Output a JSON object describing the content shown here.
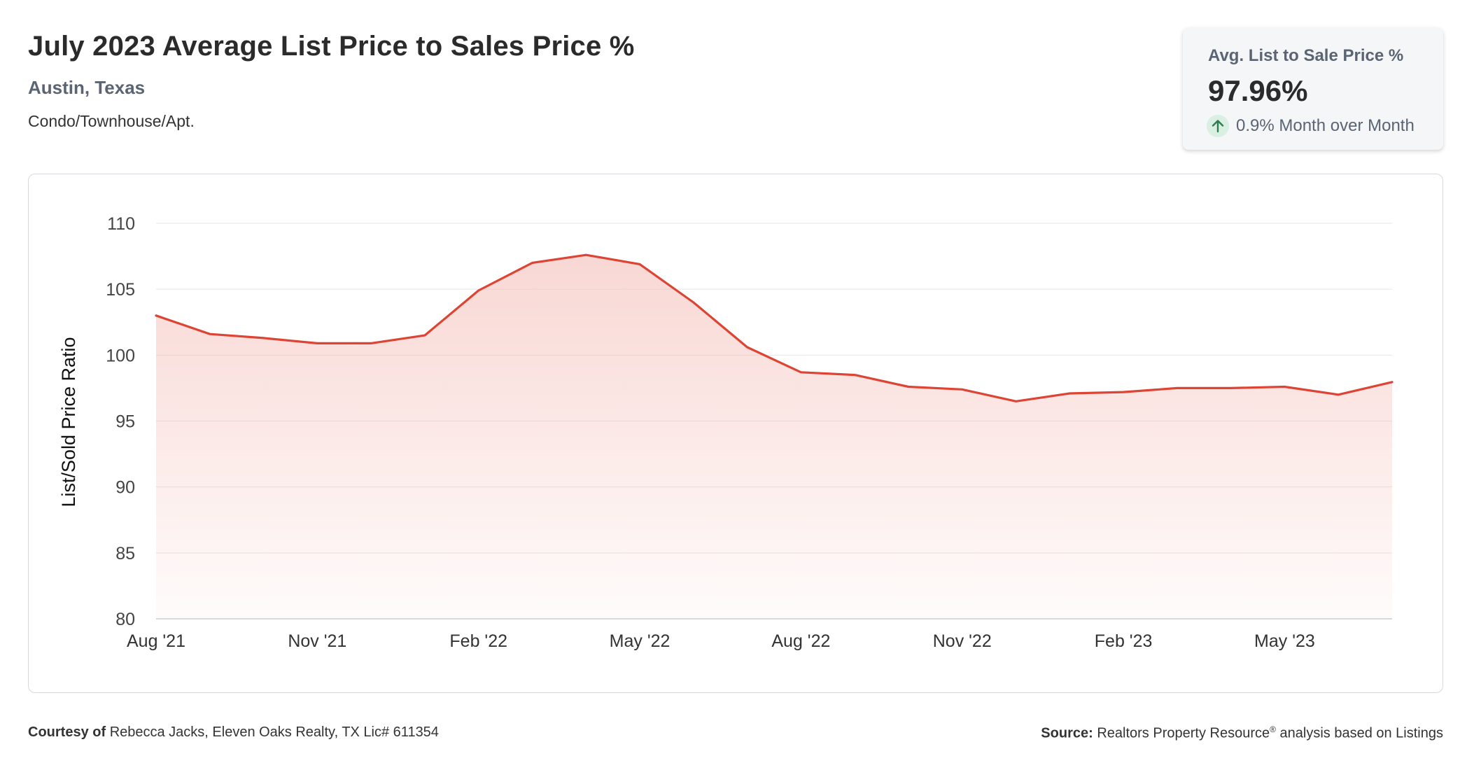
{
  "header": {
    "title": "July 2023 Average List Price to Sales Price %",
    "location": "Austin, Texas",
    "property_type": "Condo/Townhouse/Apt."
  },
  "kpi": {
    "label": "Avg. List to Sale Price %",
    "value": "97.96%",
    "change": "0.9% Month over Month",
    "change_icon": "arrow-up-icon",
    "change_color": "#2e7d4f"
  },
  "footer": {
    "courtesy_label": "Courtesy of",
    "courtesy_text": "Rebecca Jacks, Eleven Oaks Realty, TX Lic# 611354",
    "source_label": "Source:",
    "source_text_1": "Realtors Property Resource",
    "source_mark": "®",
    "source_text_2": "analysis based on Listings"
  },
  "chart_data": {
    "type": "area",
    "ylabel": "List/Sold Price Ratio",
    "ylim": [
      80,
      110
    ],
    "yticks": [
      80,
      85,
      90,
      95,
      100,
      105,
      110
    ],
    "x_tick_labels": [
      "Aug '21",
      "Nov '21",
      "Feb '22",
      "May '22",
      "Aug '22",
      "Nov '22",
      "Feb '23",
      "May '23"
    ],
    "x_tick_every": 3,
    "grid": true,
    "line_color": "#dd4434",
    "fill_color": "#f3b7b0",
    "series": [
      {
        "x": [
          "Aug '21",
          "Sep '21",
          "Oct '21",
          "Nov '21",
          "Dec '21",
          "Jan '22",
          "Feb '22",
          "Mar '22",
          "Apr '22",
          "May '22",
          "Jun '22",
          "Jul '22",
          "Aug '22",
          "Sep '22",
          "Oct '22",
          "Nov '22",
          "Dec '22",
          "Jan '23",
          "Feb '23",
          "Mar '23",
          "Apr '23",
          "May '23",
          "Jun '23",
          "Jul '23"
        ],
        "values": [
          103.0,
          101.6,
          101.3,
          100.9,
          100.9,
          101.5,
          104.9,
          107.0,
          107.6,
          106.9,
          104.0,
          100.6,
          98.7,
          98.5,
          97.6,
          97.4,
          96.5,
          97.1,
          97.2,
          97.5,
          97.5,
          97.6,
          97.0,
          97.96
        ]
      }
    ]
  }
}
